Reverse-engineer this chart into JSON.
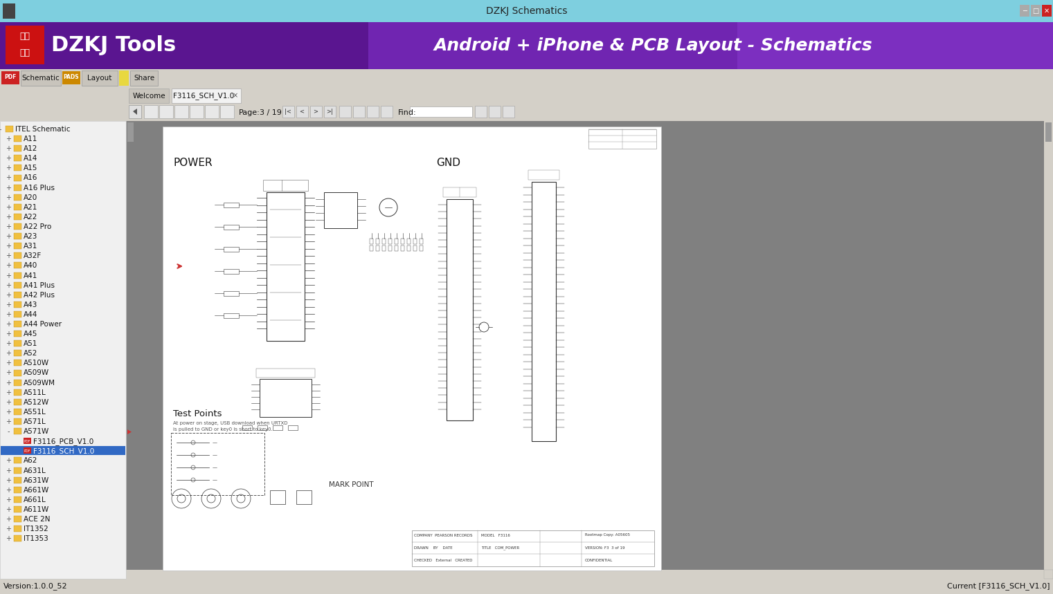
{
  "title_bar_text": "DZKJ Schematics",
  "title_bar_bg": "#7ecfdf",
  "header_bg": "#7b2fbe",
  "header_text": "DZKJ Tools",
  "header_subtitle": "Android + iPhone & PCB Layout - Schematics",
  "logo_bg": "#cc1a1a",
  "tab_bar_bg": "#d4d0c8",
  "sidebar_bg": "#f0f0f0",
  "main_bg": "#808080",
  "page_bg": "#ffffff",
  "status_text": "Version:1.0.0_52",
  "status_right": "Current [F3116_SCH_V1.0]",
  "tree_items": [
    "ITEL Schematic",
    "A11",
    "A12",
    "A14",
    "A15",
    "A16",
    "A16 Plus",
    "A20",
    "A21",
    "A22",
    "A22 Pro",
    "A23",
    "A31",
    "A32F",
    "A40",
    "A41",
    "A41 Plus",
    "A42 Plus",
    "A43",
    "A44",
    "A44 Power",
    "A45",
    "A51",
    "A52",
    "A510W",
    "A509W",
    "A509WM",
    "A511L",
    "A512W",
    "A551L",
    "A571L",
    "A571W",
    "F3116_PCB_V1.0",
    "F3116_SCH_V1.0",
    "A62",
    "A631L",
    "A631W",
    "A661W",
    "A661L",
    "A611W",
    "ACE 2N",
    "IT1352",
    "IT1353"
  ],
  "doc_tabs": [
    "Welcome",
    "F3116_SCH_V1.0"
  ],
  "page_label": "Page:",
  "page_num": "3 / 19",
  "find_label": "Find:",
  "section_power": "POWER",
  "section_gnd": "GND",
  "test_points": "Test Points",
  "mark_point": "MARK POINT"
}
